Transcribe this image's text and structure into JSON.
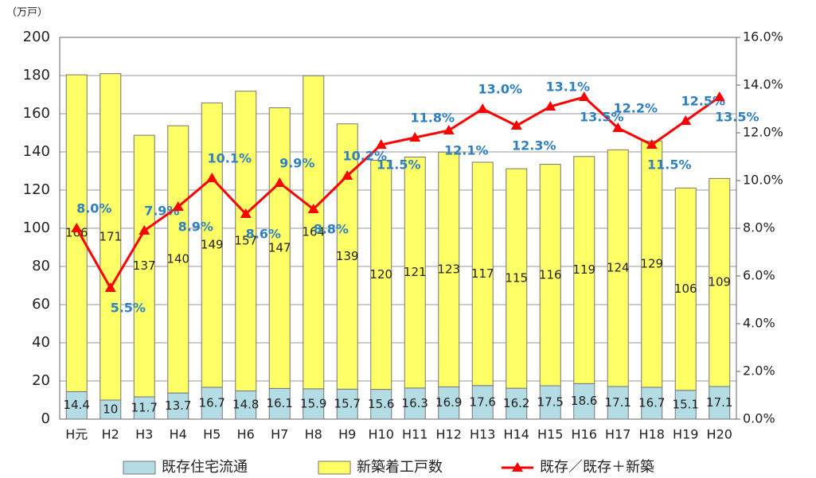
{
  "chart_data": {
    "type": "bar-line",
    "y_unit": "（万戸）",
    "categories": [
      "H元",
      "H2",
      "H3",
      "H4",
      "H5",
      "H6",
      "H7",
      "H8",
      "H9",
      "H10",
      "H11",
      "H12",
      "H13",
      "H14",
      "H15",
      "H16",
      "H17",
      "H18",
      "H19",
      "H20"
    ],
    "series": [
      {
        "name": "既存住宅流通",
        "color": "#b4dce4",
        "type": "bar",
        "values": [
          14.4,
          10,
          11.7,
          13.7,
          16.7,
          14.8,
          16.1,
          15.9,
          15.7,
          15.6,
          16.3,
          16.9,
          17.6,
          16.2,
          17.5,
          18.6,
          17.1,
          16.7,
          15.1,
          17.1
        ]
      },
      {
        "name": "新築着工戸数",
        "color": "#ffff66",
        "type": "bar",
        "values": [
          166,
          171,
          137,
          140,
          149,
          157,
          147,
          164,
          139,
          120,
          121,
          123,
          117,
          115,
          116,
          119,
          124,
          129,
          106,
          109
        ]
      },
      {
        "name": "既存／既存＋新築",
        "color": "#ff0000",
        "type": "line",
        "axis": "y2",
        "values": [
          8.0,
          5.5,
          7.9,
          8.9,
          10.1,
          8.6,
          9.9,
          8.8,
          10.2,
          11.5,
          11.8,
          12.1,
          13.0,
          12.3,
          13.1,
          13.5,
          12.2,
          11.5,
          12.5,
          13.5
        ],
        "value_labels": [
          "8.0%",
          "5.5%",
          "7.9%",
          "8.9%",
          "10.1%",
          "8.6%",
          "9.9%",
          "8.8%",
          "10.2%",
          "11.5%",
          "11.8%",
          "12.1%",
          "13.0%",
          "12.3%",
          "13.1%",
          "13.5%",
          "12.2%",
          "11.5%",
          "12.5%",
          "13.5%"
        ]
      }
    ],
    "ylim": [
      0,
      200
    ],
    "yticks": [
      0,
      20,
      40,
      60,
      80,
      100,
      120,
      140,
      160,
      180,
      200
    ],
    "y2lim": [
      0,
      16
    ],
    "y2ticks": [
      {
        "value": 0,
        "label": "0.0%"
      },
      {
        "value": 2,
        "label": "2.0%"
      },
      {
        "value": 4,
        "label": "4.0%"
      },
      {
        "value": 6,
        "label": "6.0%"
      },
      {
        "value": 8,
        "label": "8.0%"
      },
      {
        "value": 10,
        "label": "10.0%"
      },
      {
        "value": 12,
        "label": "12.0%"
      },
      {
        "value": 14,
        "label": "14.0%"
      },
      {
        "value": 16,
        "label": "16.0%"
      }
    ],
    "grid": true,
    "legend": "bottom"
  }
}
